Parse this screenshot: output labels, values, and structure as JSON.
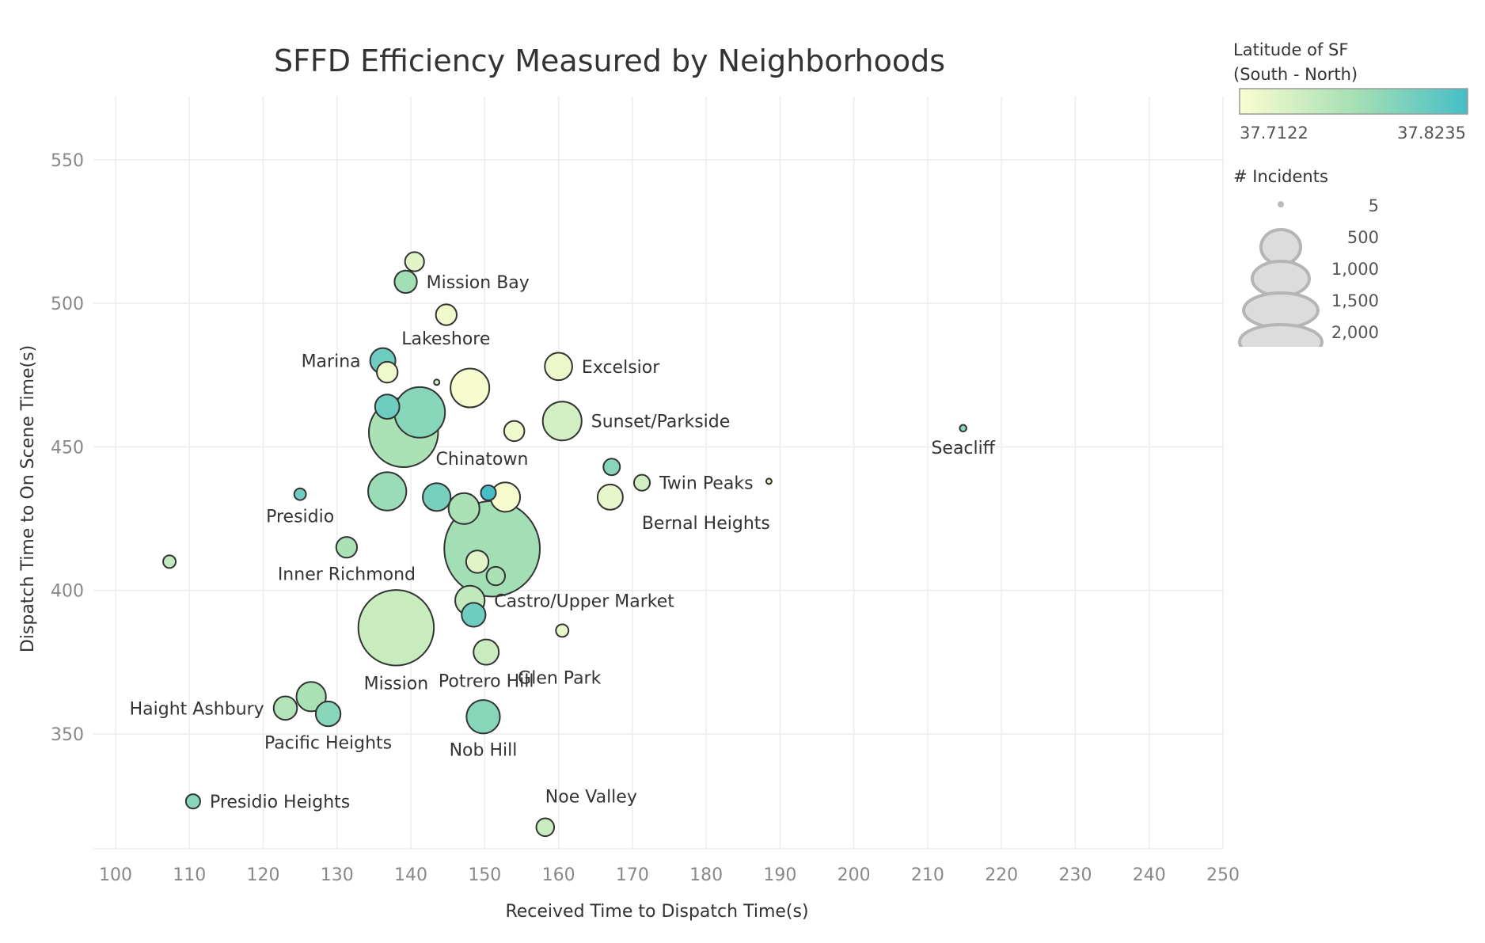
{
  "chart_data": {
    "type": "scatter",
    "title": "SFFD Efficiency Measured by Neighborhoods",
    "xlabel": "Received Time to Dispatch Time(s)",
    "ylabel": "Dispatch Time to On Scene Time(s)",
    "xlim": [
      97,
      250
    ],
    "ylim": [
      310,
      572
    ],
    "xticks": [
      100,
      110,
      120,
      130,
      140,
      150,
      160,
      170,
      180,
      190,
      200,
      210,
      220,
      230,
      240,
      250
    ],
    "yticks": [
      350,
      400,
      450,
      500,
      550
    ],
    "grid": true,
    "color_legend": {
      "title_line1": "Latitude of SF",
      "title_line2": "(South - North)",
      "min_label": "37.7122",
      "max_label": "37.8235",
      "min": 37.7122,
      "max": 37.8235,
      "color_low": "#fbfdd0",
      "color_mid": "#a6e0b4",
      "color_high": "#45bec8"
    },
    "size_legend": {
      "title": "# Incidents",
      "entries": [
        {
          "label": "5",
          "value": 5
        },
        {
          "label": "500",
          "value": 500
        },
        {
          "label": "1,000",
          "value": 1000
        },
        {
          "label": "1,500",
          "value": 1500
        },
        {
          "label": "2,000",
          "value": 2000
        }
      ]
    },
    "points": [
      {
        "label": "",
        "x": 140.5,
        "y": 514.5,
        "lat": 37.73,
        "n": 80
      },
      {
        "label": "Mission Bay",
        "x": 139.3,
        "y": 507.5,
        "lat": 37.77,
        "n": 110,
        "label_pos": "right"
      },
      {
        "label": "",
        "x": 144.8,
        "y": 496,
        "lat": 37.72,
        "n": 95
      },
      {
        "label": "Lakeshore",
        "x": 136.8,
        "y": 476,
        "lat": 37.72,
        "n": 95,
        "label_pos": "above-right"
      },
      {
        "label": "Marina",
        "x": 136.2,
        "y": 480,
        "lat": 37.8,
        "n": 140,
        "label_pos": "left"
      },
      {
        "label": "",
        "x": 143.5,
        "y": 472.5,
        "lat": 37.74,
        "n": 5
      },
      {
        "label": "",
        "x": 148,
        "y": 470.5,
        "lat": 37.715,
        "n": 330
      },
      {
        "label": "Excelsior",
        "x": 160,
        "y": 478,
        "lat": 37.722,
        "n": 165,
        "label_pos": "right"
      },
      {
        "label": "",
        "x": 136.8,
        "y": 464,
        "lat": 37.8,
        "n": 130
      },
      {
        "label": "",
        "x": 141.2,
        "y": 462,
        "lat": 37.785,
        "n": 560
      },
      {
        "label": "",
        "x": 139,
        "y": 455,
        "lat": 37.765,
        "n": 1050
      },
      {
        "label": "",
        "x": 154,
        "y": 455.5,
        "lat": 37.72,
        "n": 90
      },
      {
        "label": "Sunset/Parkside",
        "x": 160.5,
        "y": 459,
        "lat": 37.74,
        "n": 330,
        "label_pos": "right"
      },
      {
        "label": "Seacliff",
        "x": 214.8,
        "y": 456.5,
        "lat": 37.785,
        "n": 10,
        "label_pos": "below"
      },
      {
        "label": "",
        "x": 167.2,
        "y": 443,
        "lat": 37.785,
        "n": 60
      },
      {
        "label": "Twin Peaks",
        "x": 171.3,
        "y": 437.5,
        "lat": 37.74,
        "n": 55,
        "label_pos": "right"
      },
      {
        "label": "",
        "x": 188.5,
        "y": 438,
        "lat": 37.73,
        "n": 5
      },
      {
        "label": "Presidio",
        "x": 125,
        "y": 433.5,
        "lat": 37.8,
        "n": 30,
        "label_pos": "below"
      },
      {
        "label": "",
        "x": 136.8,
        "y": 434.5,
        "lat": 37.775,
        "n": 320
      },
      {
        "label": "",
        "x": 143.5,
        "y": 432.5,
        "lat": 37.795,
        "n": 170
      },
      {
        "label": "Chinatown",
        "x": 150.5,
        "y": 434,
        "lat": 37.8235,
        "n": 50,
        "label_pos": "above"
      },
      {
        "label": "",
        "x": 152.8,
        "y": 432.5,
        "lat": 37.715,
        "n": 190
      },
      {
        "label": "Bernal Heights",
        "x": 167,
        "y": 432.5,
        "lat": 37.725,
        "n": 140,
        "label_pos": "below-right"
      },
      {
        "label": "",
        "x": 147.2,
        "y": 428.5,
        "lat": 37.765,
        "n": 210
      },
      {
        "label": "",
        "x": 151,
        "y": 414.5,
        "lat": 37.77,
        "n": 2000
      },
      {
        "label": "",
        "x": 149,
        "y": 410,
        "lat": 37.73,
        "n": 110
      },
      {
        "label": "Inner Richmond",
        "x": 131.3,
        "y": 415,
        "lat": 37.765,
        "n": 95,
        "label_pos": "below"
      },
      {
        "label": "",
        "x": 107.3,
        "y": 410,
        "lat": 37.75,
        "n": 35
      },
      {
        "label": "",
        "x": 151.5,
        "y": 405,
        "lat": 37.765,
        "n": 75
      },
      {
        "label": "Castro/Upper Market",
        "x": 148,
        "y": 396.5,
        "lat": 37.75,
        "n": 190,
        "label_pos": "right"
      },
      {
        "label": "",
        "x": 148.5,
        "y": 391.5,
        "lat": 37.8,
        "n": 125
      },
      {
        "label": "Mission",
        "x": 138,
        "y": 387,
        "lat": 37.745,
        "n": 1250,
        "label_pos": "below"
      },
      {
        "label": "",
        "x": 160.5,
        "y": 386,
        "lat": 37.725,
        "n": 35
      },
      {
        "label": "Glen Park",
        "x": 150.2,
        "y": 378.5,
        "lat": 37.745,
        "n": 140,
        "label_pos": "below-right"
      },
      {
        "label": "Potrero Hill",
        "x": 150.2,
        "y": 378.5,
        "lat": 37.745,
        "n": 0,
        "label_pos": "below-left"
      },
      {
        "label": "",
        "x": 126.5,
        "y": 363,
        "lat": 37.765,
        "n": 190
      },
      {
        "label": "Haight Ashbury",
        "x": 123,
        "y": 359,
        "lat": 37.76,
        "n": 120,
        "label_pos": "left"
      },
      {
        "label": "Pacific Heights",
        "x": 128.8,
        "y": 357,
        "lat": 37.785,
        "n": 135,
        "label_pos": "below"
      },
      {
        "label": "Nob Hill",
        "x": 149.8,
        "y": 356,
        "lat": 37.785,
        "n": 245,
        "label_pos": "below"
      },
      {
        "label": "Presidio Heights",
        "x": 110.5,
        "y": 326.5,
        "lat": 37.785,
        "n": 45,
        "label_pos": "right"
      },
      {
        "label": "Noe Valley",
        "x": 158.2,
        "y": 317.5,
        "lat": 37.745,
        "n": 70,
        "label_pos": "above-right"
      }
    ]
  }
}
